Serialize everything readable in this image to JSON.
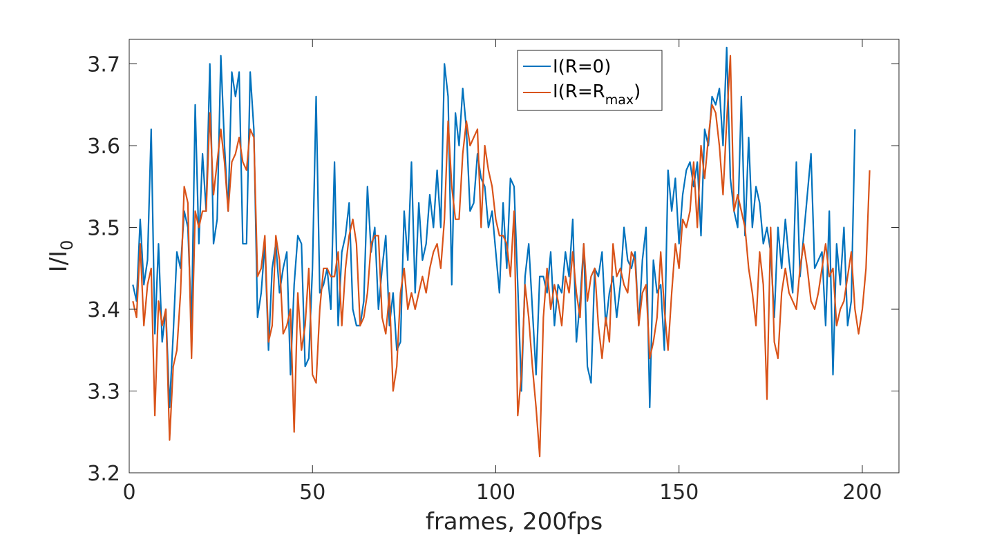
{
  "chart_data": {
    "type": "line",
    "title": "",
    "xlabel": "frames, 200fps",
    "ylabel": "I/I",
    "ylabel_sub": "0",
    "xlim": [
      0,
      210
    ],
    "ylim": [
      3.2,
      3.73
    ],
    "xticks": [
      0,
      50,
      100,
      150,
      200
    ],
    "yticks": [
      3.2,
      3.3,
      3.4,
      3.5,
      3.6,
      3.7
    ],
    "grid": false,
    "legend_position": "top-center",
    "x_start": 1,
    "series": [
      {
        "name": "I(R=0)",
        "legend_parts": [
          "I(R=0)",
          "",
          ")"
        ],
        "color": "#0072BD",
        "values": [
          3.43,
          3.41,
          3.51,
          3.43,
          3.46,
          3.62,
          3.37,
          3.48,
          3.36,
          3.4,
          3.28,
          3.37,
          3.47,
          3.45,
          3.52,
          3.5,
          3.38,
          3.65,
          3.48,
          3.59,
          3.52,
          3.7,
          3.48,
          3.51,
          3.71,
          3.6,
          3.52,
          3.69,
          3.66,
          3.69,
          3.48,
          3.48,
          3.69,
          3.62,
          3.39,
          3.42,
          3.48,
          3.35,
          3.45,
          3.48,
          3.42,
          3.45,
          3.47,
          3.32,
          3.43,
          3.49,
          3.48,
          3.33,
          3.34,
          3.45,
          3.66,
          3.42,
          3.43,
          3.45,
          3.4,
          3.58,
          3.38,
          3.47,
          3.49,
          3.53,
          3.4,
          3.38,
          3.38,
          3.41,
          3.55,
          3.47,
          3.5,
          3.4,
          3.45,
          3.49,
          3.38,
          3.42,
          3.35,
          3.36,
          3.52,
          3.46,
          3.58,
          3.42,
          3.53,
          3.46,
          3.48,
          3.54,
          3.5,
          3.57,
          3.5,
          3.7,
          3.66,
          3.43,
          3.64,
          3.6,
          3.67,
          3.62,
          3.52,
          3.53,
          3.59,
          3.56,
          3.55,
          3.5,
          3.52,
          3.47,
          3.42,
          3.53,
          3.45,
          3.56,
          3.55,
          3.43,
          3.3,
          3.44,
          3.48,
          3.4,
          3.32,
          3.44,
          3.44,
          3.42,
          3.47,
          3.38,
          3.43,
          3.42,
          3.47,
          3.44,
          3.51,
          3.36,
          3.41,
          3.48,
          3.33,
          3.31,
          3.45,
          3.44,
          3.47,
          3.38,
          3.42,
          3.44,
          3.39,
          3.43,
          3.5,
          3.46,
          3.45,
          3.47,
          3.38,
          3.46,
          3.5,
          3.28,
          3.46,
          3.42,
          3.43,
          3.35,
          3.57,
          3.52,
          3.56,
          3.48,
          3.54,
          3.57,
          3.58,
          3.55,
          3.58,
          3.49,
          3.62,
          3.6,
          3.66,
          3.65,
          3.67,
          3.6,
          3.72,
          3.56,
          3.52,
          3.5,
          3.66,
          3.49,
          3.61,
          3.5,
          3.55,
          3.53,
          3.48,
          3.5,
          3.47,
          3.39,
          3.5,
          3.45,
          3.51,
          3.46,
          3.42,
          3.58,
          3.44,
          3.49,
          3.54,
          3.59,
          3.45,
          3.46,
          3.47,
          3.38,
          3.52,
          3.32,
          3.48,
          3.43,
          3.5,
          3.38,
          3.41,
          3.62
        ],
        "sparse_ref_values": [
          3.42,
          3.51,
          3.45,
          3.61,
          3.33,
          3.36,
          3.4,
          3.28,
          3.47,
          3.52,
          3.38,
          3.65,
          3.47,
          3.59,
          3.7,
          3.48,
          3.71,
          3.66,
          3.69,
          3.48,
          3.69,
          3.39,
          3.48,
          3.35,
          3.32,
          3.48,
          3.34,
          3.66,
          3.42,
          3.58,
          3.38,
          3.55,
          3.36,
          3.58,
          3.7,
          3.43,
          3.69,
          3.59,
          3.52,
          3.27,
          3.44,
          3.35,
          3.31,
          3.28,
          3.57,
          3.72,
          3.5,
          3.62,
          3.38,
          3.59,
          3.33,
          3.62
        ]
      },
      {
        "name": "I(R=R",
        "legend_parts": [
          "I(R=R",
          "max",
          ")"
        ],
        "color": "#D95319",
        "values": [
          3.41,
          3.39,
          3.48,
          3.38,
          3.43,
          3.45,
          3.27,
          3.41,
          3.38,
          3.4,
          3.24,
          3.33,
          3.35,
          3.42,
          3.55,
          3.53,
          3.34,
          3.52,
          3.5,
          3.52,
          3.52,
          3.64,
          3.54,
          3.58,
          3.62,
          3.58,
          3.52,
          3.58,
          3.59,
          3.61,
          3.58,
          3.57,
          3.62,
          3.61,
          3.44,
          3.45,
          3.49,
          3.36,
          3.38,
          3.49,
          3.46,
          3.37,
          3.38,
          3.4,
          3.25,
          3.42,
          3.35,
          3.38,
          3.45,
          3.32,
          3.31,
          3.4,
          3.45,
          3.45,
          3.44,
          3.44,
          3.47,
          3.38,
          3.45,
          3.49,
          3.51,
          3.48,
          3.38,
          3.39,
          3.42,
          3.48,
          3.49,
          3.49,
          3.39,
          3.37,
          3.42,
          3.3,
          3.33,
          3.42,
          3.45,
          3.4,
          3.42,
          3.4,
          3.42,
          3.44,
          3.42,
          3.45,
          3.47,
          3.48,
          3.45,
          3.51,
          3.63,
          3.55,
          3.51,
          3.51,
          3.59,
          3.63,
          3.6,
          3.61,
          3.62,
          3.5,
          3.6,
          3.57,
          3.55,
          3.51,
          3.49,
          3.49,
          3.48,
          3.44,
          3.52,
          3.27,
          3.32,
          3.43,
          3.39,
          3.33,
          3.28,
          3.22,
          3.39,
          3.45,
          3.4,
          3.43,
          3.41,
          3.38,
          3.44,
          3.42,
          3.47,
          3.42,
          3.39,
          3.48,
          3.41,
          3.44,
          3.45,
          3.38,
          3.34,
          3.39,
          3.36,
          3.48,
          3.44,
          3.45,
          3.43,
          3.42,
          3.47,
          3.46,
          3.38,
          3.42,
          3.43,
          3.34,
          3.36,
          3.39,
          3.47,
          3.4,
          3.35,
          3.42,
          3.48,
          3.45,
          3.51,
          3.5,
          3.52,
          3.58,
          3.5,
          3.6,
          3.56,
          3.61,
          3.65,
          3.64,
          3.6,
          3.54,
          3.63,
          3.71,
          3.52,
          3.54,
          3.52,
          3.5,
          3.45,
          3.42,
          3.38,
          3.47,
          3.43,
          3.29,
          3.5,
          3.36,
          3.34,
          3.42,
          3.45,
          3.42,
          3.41,
          3.4,
          3.45,
          3.48,
          3.45,
          3.41,
          3.4,
          3.42,
          3.45,
          3.48,
          3.44,
          3.45,
          3.38,
          3.4,
          3.41,
          3.44,
          3.47,
          3.4,
          3.37,
          3.4,
          3.45,
          3.57
        ]
      }
    ]
  }
}
